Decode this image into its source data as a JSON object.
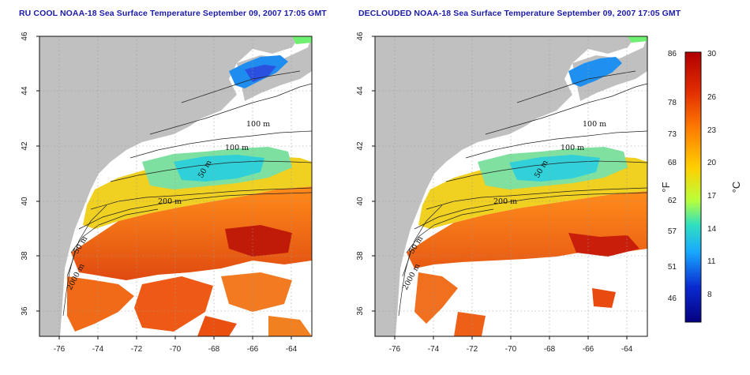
{
  "maps": [
    {
      "title": "RU COOL NOAA-18 Sea Surface Temperature September 09, 2007 17:05 GMT",
      "lat_ticks": [
        "46",
        "44",
        "42",
        "40",
        "38",
        "36"
      ],
      "lon_ticks": [
        "-76",
        "-74",
        "-72",
        "-70",
        "-68",
        "-66",
        "-64"
      ],
      "contour_labels": [
        "100 m",
        "100 m",
        "50 m",
        "200 m",
        "50 m",
        "2000 m"
      ]
    },
    {
      "title": "DECLOUDED NOAA-18 Sea Surface Temperature September 09, 2007 17:05 GMT",
      "lat_ticks": [
        "46",
        "44",
        "42",
        "40",
        "38",
        "36"
      ],
      "lon_ticks": [
        "-76",
        "-74",
        "-72",
        "-70",
        "-68",
        "-66",
        "-64"
      ],
      "contour_labels": [
        "100 m",
        "100 m",
        "50 m",
        "200 m",
        "50 m",
        "2000 m"
      ]
    }
  ],
  "colorbar": {
    "f_unit": "°F",
    "c_unit": "°C",
    "f_ticks": [
      "86",
      "78",
      "73",
      "68",
      "62",
      "57",
      "51",
      "46"
    ],
    "c_ticks": [
      "30",
      "26",
      "23",
      "20",
      "17",
      "14",
      "11",
      "8"
    ],
    "colors": [
      "#b00000",
      "#ff6a00",
      "#ffc000",
      "#b8ff3c",
      "#30e0c0",
      "#1a9cff",
      "#0a2ad0",
      "#050080"
    ]
  }
}
